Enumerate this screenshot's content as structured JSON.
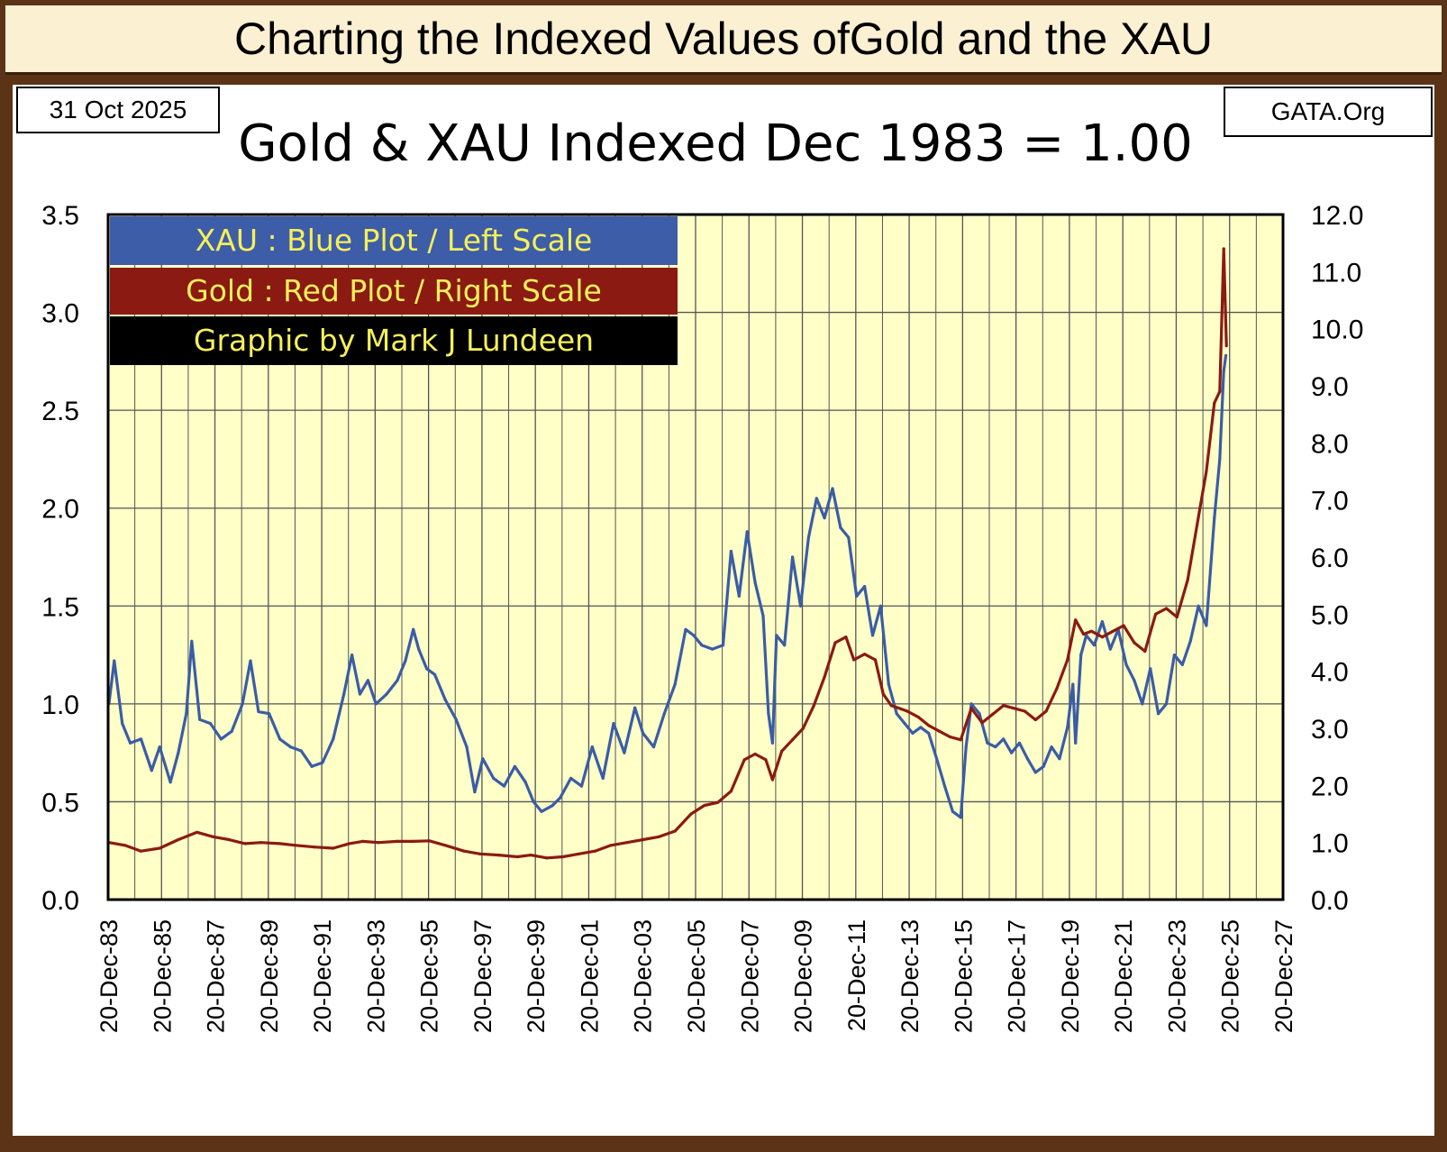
{
  "banner": {
    "title": "Charting the Indexed Values ofGold and the XAU"
  },
  "header": {
    "date": "31 Oct 2025",
    "source": "GATA.Org"
  },
  "legend": {
    "xau": "XAU : Blue Plot / Left Scale",
    "gold": "Gold : Red Plot / Right Scale",
    "credit": "Graphic by Mark J Lundeen"
  },
  "colors": {
    "xau": "#3b5ca6",
    "gold": "#8b1a12",
    "plot_bg": "#ffffc8",
    "grid": "#555555"
  },
  "chart_data": {
    "type": "line",
    "title": "Gold & XAU Indexed Dec 1983 = 1.00",
    "x_tick_labels": [
      "20-Dec-83",
      "20-Dec-85",
      "20-Dec-87",
      "20-Dec-89",
      "20-Dec-91",
      "20-Dec-93",
      "20-Dec-95",
      "20-Dec-97",
      "20-Dec-99",
      "20-Dec-01",
      "20-Dec-03",
      "20-Dec-05",
      "20-Dec-07",
      "20-Dec-09",
      "20-Dec-11",
      "20-Dec-13",
      "20-Dec-15",
      "20-Dec-17",
      "20-Dec-19",
      "20-Dec-21",
      "20-Dec-23",
      "20-Dec-25",
      "20-Dec-27"
    ],
    "xlim": [
      1983.97,
      2027.97
    ],
    "y_left": {
      "label": "XAU",
      "ylim": [
        0,
        3.5
      ],
      "ticks": [
        "0.0",
        "0.5",
        "1.0",
        "1.5",
        "2.0",
        "2.5",
        "3.0",
        "3.5"
      ]
    },
    "y_right": {
      "label": "Gold",
      "ylim": [
        0,
        12
      ],
      "ticks": [
        "0.0",
        "1.0",
        "2.0",
        "3.0",
        "4.0",
        "5.0",
        "6.0",
        "7.0",
        "8.0",
        "9.0",
        "10.0",
        "11.0",
        "12.0"
      ]
    },
    "series": [
      {
        "name": "XAU",
        "axis": "left",
        "x": [
          1984.0,
          1984.2,
          1984.5,
          1984.8,
          1985.2,
          1985.6,
          1985.9,
          1986.3,
          1986.6,
          1986.9,
          1987.1,
          1987.4,
          1987.8,
          1988.2,
          1988.6,
          1989.0,
          1989.3,
          1989.6,
          1990.0,
          1990.4,
          1990.8,
          1991.2,
          1991.6,
          1992.0,
          1992.4,
          1992.8,
          1993.1,
          1993.4,
          1993.7,
          1994.0,
          1994.4,
          1994.8,
          1995.1,
          1995.4,
          1995.6,
          1995.9,
          1996.2,
          1996.6,
          1997.0,
          1997.4,
          1997.7,
          1998.0,
          1998.4,
          1998.8,
          1999.2,
          1999.6,
          1999.9,
          2000.2,
          2000.6,
          2000.9,
          2001.3,
          2001.7,
          2002.1,
          2002.5,
          2002.9,
          2003.3,
          2003.7,
          2004.0,
          2004.4,
          2004.8,
          2005.2,
          2005.6,
          2005.9,
          2006.2,
          2006.6,
          2007.0,
          2007.3,
          2007.6,
          2007.9,
          2008.2,
          2008.5,
          2008.7,
          2008.85,
          2009.0,
          2009.3,
          2009.6,
          2009.9,
          2010.2,
          2010.5,
          2010.8,
          2011.1,
          2011.4,
          2011.7,
          2012.0,
          2012.3,
          2012.6,
          2012.9,
          2013.2,
          2013.5,
          2013.8,
          2014.1,
          2014.4,
          2014.7,
          2015.0,
          2015.3,
          2015.6,
          2015.9,
          2016.1,
          2016.3,
          2016.6,
          2016.9,
          2017.2,
          2017.5,
          2017.8,
          2018.1,
          2018.4,
          2018.7,
          2019.0,
          2019.3,
          2019.6,
          2019.9,
          2020.1,
          2020.2,
          2020.4,
          2020.6,
          2020.9,
          2021.2,
          2021.5,
          2021.8,
          2022.1,
          2022.4,
          2022.7,
          2023.0,
          2023.3,
          2023.6,
          2023.9,
          2024.2,
          2024.5,
          2024.8,
          2025.1,
          2025.4,
          2025.6,
          2025.75,
          2025.83
        ],
        "values": [
          1.0,
          1.22,
          0.9,
          0.8,
          0.82,
          0.66,
          0.78,
          0.6,
          0.75,
          0.95,
          1.32,
          0.92,
          0.9,
          0.82,
          0.86,
          1.0,
          1.22,
          0.96,
          0.95,
          0.82,
          0.78,
          0.76,
          0.68,
          0.7,
          0.82,
          1.05,
          1.25,
          1.05,
          1.12,
          1.0,
          1.05,
          1.12,
          1.22,
          1.38,
          1.28,
          1.18,
          1.15,
          1.02,
          0.92,
          0.78,
          0.55,
          0.72,
          0.62,
          0.58,
          0.68,
          0.6,
          0.5,
          0.45,
          0.48,
          0.52,
          0.62,
          0.58,
          0.78,
          0.62,
          0.9,
          0.75,
          0.98,
          0.85,
          0.78,
          0.95,
          1.1,
          1.38,
          1.35,
          1.3,
          1.28,
          1.3,
          1.78,
          1.55,
          1.88,
          1.62,
          1.45,
          0.95,
          0.8,
          1.35,
          1.3,
          1.75,
          1.5,
          1.85,
          2.05,
          1.95,
          2.1,
          1.9,
          1.85,
          1.55,
          1.6,
          1.35,
          1.5,
          1.1,
          0.95,
          0.9,
          0.85,
          0.88,
          0.85,
          0.72,
          0.58,
          0.45,
          0.42,
          0.78,
          1.0,
          0.95,
          0.8,
          0.78,
          0.82,
          0.75,
          0.8,
          0.72,
          0.65,
          0.68,
          0.78,
          0.72,
          0.88,
          1.1,
          0.8,
          1.25,
          1.35,
          1.3,
          1.42,
          1.28,
          1.38,
          1.2,
          1.12,
          1.0,
          1.18,
          0.95,
          1.0,
          1.25,
          1.2,
          1.32,
          1.5,
          1.4,
          1.95,
          2.25,
          2.7,
          2.78
        ],
        "color": "#3b5ca6"
      },
      {
        "name": "Gold",
        "axis": "right",
        "x": [
          1984.0,
          1984.6,
          1985.2,
          1985.9,
          1986.6,
          1987.3,
          1987.9,
          1988.5,
          1989.1,
          1989.7,
          1990.4,
          1991.0,
          1991.7,
          1992.4,
          1993.0,
          1993.5,
          1994.1,
          1994.8,
          1995.4,
          1996.0,
          1996.6,
          1997.3,
          1997.9,
          1998.6,
          1999.3,
          1999.8,
          2000.4,
          2001.0,
          2001.6,
          2002.2,
          2002.8,
          2003.4,
          2004.0,
          2004.6,
          2005.2,
          2005.8,
          2006.3,
          2006.8,
          2007.3,
          2007.8,
          2008.2,
          2008.6,
          2008.85,
          2009.2,
          2009.6,
          2010.0,
          2010.4,
          2010.8,
          2011.2,
          2011.6,
          2011.9,
          2012.3,
          2012.7,
          2013.0,
          2013.3,
          2013.6,
          2013.9,
          2014.3,
          2014.7,
          2015.1,
          2015.5,
          2015.9,
          2016.3,
          2016.7,
          2017.1,
          2017.5,
          2017.9,
          2018.3,
          2018.7,
          2019.1,
          2019.5,
          2019.9,
          2020.2,
          2020.5,
          2020.8,
          2021.2,
          2021.6,
          2022.0,
          2022.4,
          2022.8,
          2023.2,
          2023.6,
          2024.0,
          2024.4,
          2024.8,
          2025.1,
          2025.4,
          2025.6,
          2025.75,
          2025.85
        ],
        "values": [
          1.0,
          0.95,
          0.85,
          0.9,
          1.05,
          1.18,
          1.1,
          1.05,
          0.98,
          1.0,
          0.98,
          0.95,
          0.92,
          0.9,
          0.98,
          1.02,
          1.0,
          1.02,
          1.02,
          1.03,
          0.95,
          0.85,
          0.8,
          0.78,
          0.75,
          0.78,
          0.73,
          0.75,
          0.8,
          0.85,
          0.95,
          1.0,
          1.05,
          1.1,
          1.2,
          1.5,
          1.65,
          1.7,
          1.9,
          2.45,
          2.55,
          2.45,
          2.1,
          2.6,
          2.8,
          3.0,
          3.4,
          3.9,
          4.5,
          4.6,
          4.2,
          4.3,
          4.2,
          3.6,
          3.4,
          3.35,
          3.3,
          3.2,
          3.05,
          2.95,
          2.85,
          2.8,
          3.35,
          3.1,
          3.25,
          3.4,
          3.35,
          3.3,
          3.15,
          3.3,
          3.7,
          4.2,
          4.9,
          4.65,
          4.7,
          4.6,
          4.7,
          4.8,
          4.5,
          4.35,
          5.0,
          5.1,
          4.95,
          5.6,
          6.7,
          7.5,
          8.7,
          8.9,
          11.4,
          9.7
        ],
        "color": "#8b1a12"
      }
    ]
  }
}
